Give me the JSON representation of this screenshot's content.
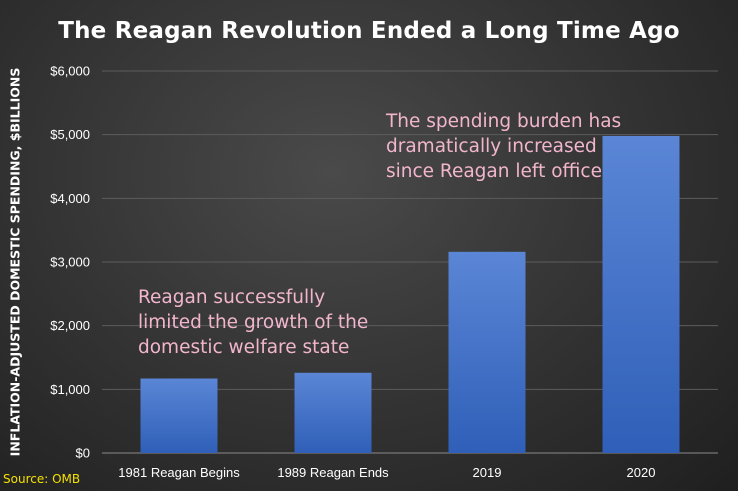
{
  "chart_data": {
    "type": "bar",
    "title": "The Reagan Revolution Ended a Long Time Ago",
    "ylabel": "INFLATION-ADJUSTED DOMESTIC SPENDING, $BILLIONS",
    "xlabel": "",
    "categories": [
      "1981 Reagan Begins",
      "1989 Reagan Ends",
      "2019",
      "2020"
    ],
    "values": [
      1170,
      1260,
      3160,
      4980
    ],
    "ylim": [
      0,
      6000
    ],
    "yticks": [
      0,
      1000,
      2000,
      3000,
      4000,
      5000,
      6000
    ],
    "ytick_labels": [
      "$0",
      "$1,000",
      "$2,000",
      "$3,000",
      "$4,000",
      "$5,000",
      "$6,000"
    ],
    "grid": true,
    "bar_color_top": "#5b86d6",
    "bar_color_bottom": "#2f5fb8",
    "gridline_color": "#5c5c5c",
    "annotations": [
      "Reagan successfully\nlimited the growth of the\ndomestic welfare state",
      "The spending burden has\ndramatically increased\nsince Reagan left office"
    ],
    "annotation_color": "#f2b6cc",
    "source": "Source: OMB",
    "source_color": "#f5e000"
  }
}
